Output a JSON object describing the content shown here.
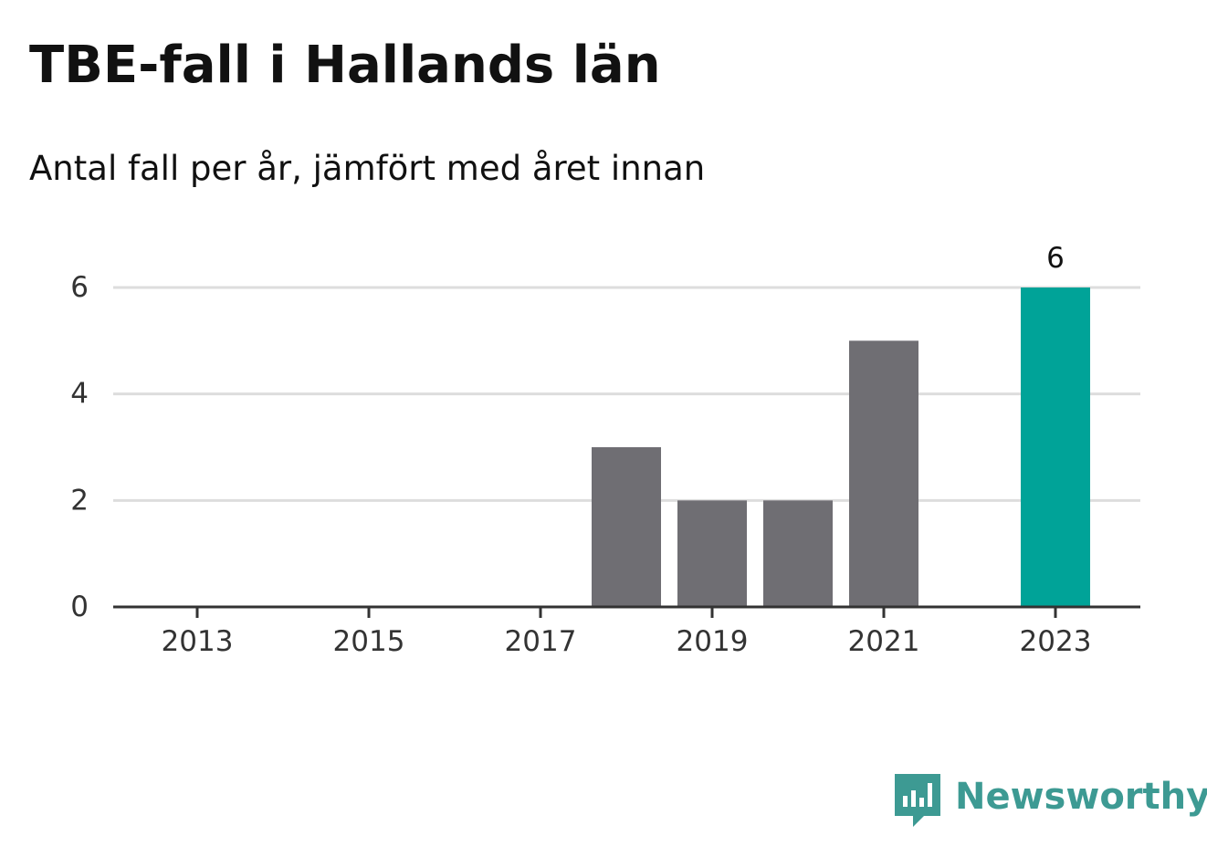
{
  "title": "TBE-fall i Hallands län",
  "subtitle": "Antal fall per år, jämfört med året innan",
  "brand": {
    "name": "Newsworthy",
    "color": "#3d9a93",
    "icon": "newsworthy-logo-icon"
  },
  "colors": {
    "previous_years": "#6f6e73",
    "highlight": "#00a398",
    "grid": "#dddddd",
    "axis": "#333333"
  },
  "chart_data": {
    "type": "bar",
    "title": "TBE-fall i Hallands län",
    "subtitle": "Antal fall per år, jämfört med året innan",
    "xlabel": "",
    "ylabel": "",
    "categories": [
      "2013",
      "2014",
      "2015",
      "2016",
      "2017",
      "2018",
      "2019",
      "2020",
      "2021",
      "2022",
      "2023"
    ],
    "values": [
      0,
      0,
      0,
      0,
      0,
      3,
      2,
      2,
      5,
      0,
      6
    ],
    "highlight_category": "2023",
    "x_tick_labels": [
      "2013",
      "2015",
      "2017",
      "2019",
      "2021",
      "2023"
    ],
    "y_ticks": [
      0,
      2,
      4,
      6
    ],
    "ylim": [
      0,
      6
    ],
    "grid": true,
    "data_labels": [
      {
        "category": "2023",
        "text": "6"
      }
    ]
  }
}
